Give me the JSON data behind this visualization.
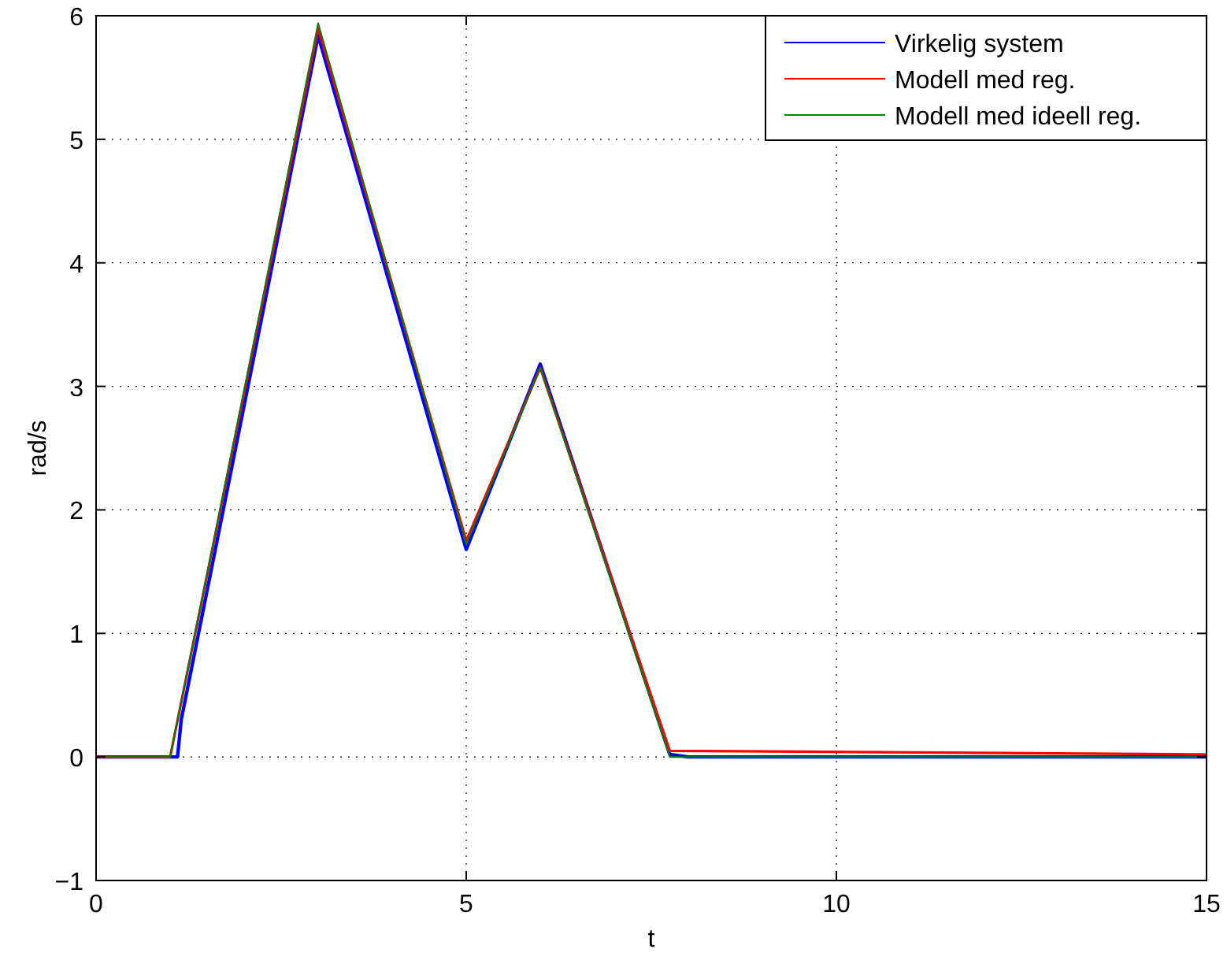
{
  "chart_data": {
    "type": "line",
    "xlabel": "t",
    "ylabel": "rad/s",
    "xlim": [
      0,
      15
    ],
    "ylim": [
      -1,
      6
    ],
    "xticks": [
      0,
      5,
      10,
      15
    ],
    "yticks": [
      {
        "value": -1,
        "label": "−1"
      },
      0,
      1,
      2,
      3,
      4,
      5,
      6
    ],
    "grid": true,
    "legend": "top right",
    "line_style": "solid",
    "marker": "none",
    "series": [
      {
        "name": "Virkelig system",
        "color": "#0000ff",
        "x": [
          0,
          1.1,
          1.15,
          3,
          5,
          6,
          7.75,
          8,
          15
        ],
        "values": [
          0,
          0,
          0.3,
          5.84,
          1.68,
          3.18,
          0.02,
          0,
          0
        ]
      },
      {
        "name": "Modell med reg.",
        "color": "#ff0000",
        "x": [
          0,
          1,
          3,
          5,
          6,
          7.75,
          15
        ],
        "values": [
          0,
          0,
          5.9,
          1.75,
          3.15,
          0.05,
          0.02
        ]
      },
      {
        "name": "Modell med ideell reg.",
        "color": "#008000",
        "x": [
          0,
          1,
          3,
          5,
          6,
          7.75,
          15
        ],
        "values": [
          0,
          0,
          5.94,
          1.72,
          3.15,
          0,
          0
        ]
      }
    ]
  }
}
